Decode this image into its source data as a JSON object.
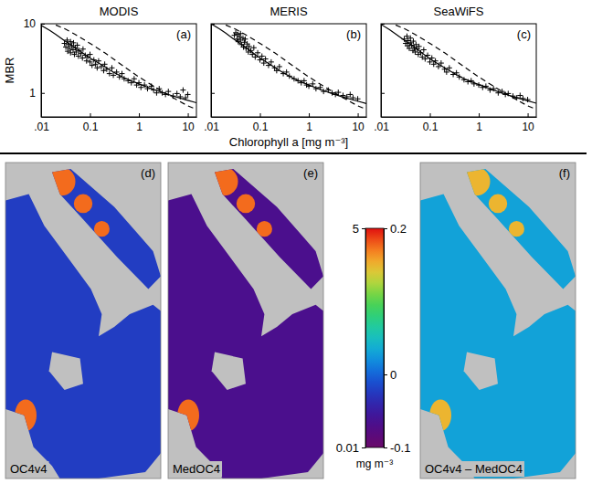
{
  "chart_data": [
    {
      "type": "scatter",
      "title": "MODIS",
      "letter": "(a)",
      "y_label": "MBR",
      "log": true,
      "xlim": [
        0.01,
        15
      ],
      "ylim": [
        0.45,
        10
      ],
      "xticks": [
        {
          "value": 0.01,
          "label": ".01"
        },
        0.1,
        1,
        10
      ],
      "yticks": [
        1,
        10
      ],
      "series": [
        {
          "type": "scatter",
          "marker": "plus",
          "color": "#000000",
          "x": [
            0.03,
            0.032,
            0.034,
            0.035,
            0.036,
            0.038,
            0.04,
            0.04,
            0.042,
            0.045,
            0.046,
            0.048,
            0.05,
            0.052,
            0.055,
            0.058,
            0.06,
            0.065,
            0.07,
            0.072,
            0.08,
            0.085,
            0.09,
            0.1,
            0.1,
            0.11,
            0.12,
            0.13,
            0.14,
            0.15,
            0.17,
            0.19,
            0.2,
            0.22,
            0.25,
            0.28,
            0.3,
            0.35,
            0.4,
            0.45,
            0.5,
            0.6,
            0.7,
            0.8,
            0.9,
            1.0,
            1.1,
            1.3,
            1.5,
            1.8,
            2.0,
            2.3,
            2.6,
            3.0,
            3.5,
            4.0,
            5.0,
            6.0,
            7.0,
            8.0,
            9.0,
            10
          ],
          "values": [
            5.2,
            4.6,
            5.8,
            4.0,
            5.0,
            4.4,
            5.5,
            3.8,
            4.8,
            4.2,
            5.3,
            3.6,
            4.5,
            3.9,
            4.9,
            3.4,
            4.1,
            3.7,
            3.2,
            4.3,
            3.5,
            2.9,
            3.3,
            2.8,
            3.6,
            2.5,
            3.0,
            2.6,
            2.3,
            2.9,
            2.4,
            2.1,
            2.6,
            2.2,
            1.9,
            2.3,
            1.8,
            2.0,
            1.7,
            1.9,
            1.6,
            1.5,
            1.4,
            1.6,
            1.3,
            1.4,
            1.2,
            1.3,
            1.15,
            1.25,
            1.1,
            1.0,
            1.15,
            1.0,
            0.95,
            1.05,
            0.9,
            0.98,
            0.88,
            1.1,
            0.85,
            0.95
          ]
        },
        {
          "type": "line",
          "line_style": "solid",
          "color": "#000000",
          "x": [
            0.01,
            0.015,
            0.02,
            0.03,
            0.05,
            0.1,
            0.2,
            0.3,
            0.5,
            1,
            2,
            3,
            5,
            10,
            15
          ],
          "values": [
            9.5,
            8.0,
            7.0,
            5.7,
            4.5,
            3.2,
            2.4,
            2.0,
            1.65,
            1.35,
            1.12,
            1.02,
            0.9,
            0.78,
            0.72
          ]
        },
        {
          "type": "line",
          "line_style": "dashed",
          "color": "#000000",
          "x": [
            0.02,
            0.03,
            0.05,
            0.1,
            0.2,
            0.3,
            0.5,
            1,
            2,
            3,
            5,
            10,
            15
          ],
          "values": [
            9.6,
            8.5,
            7.0,
            5.2,
            3.8,
            3.1,
            2.4,
            1.7,
            1.25,
            1.05,
            0.85,
            0.65,
            0.58
          ]
        }
      ]
    },
    {
      "type": "scatter",
      "title": "MERIS",
      "letter": "(b)",
      "x_label": "Chlorophyll a [mg m⁻³]",
      "log": true,
      "tick_labels": "x",
      "xlim": [
        0.01,
        15
      ],
      "ylim": [
        0.45,
        10
      ],
      "xticks": [
        {
          "value": 0.01,
          "label": ".01"
        },
        0.1,
        1,
        10
      ],
      "yticks": [
        1,
        10
      ],
      "series": [
        {
          "type": "scatter",
          "marker": "plus",
          "color": "#000000",
          "x": [
            0.03,
            0.032,
            0.034,
            0.035,
            0.036,
            0.038,
            0.04,
            0.04,
            0.042,
            0.045,
            0.046,
            0.048,
            0.05,
            0.052,
            0.055,
            0.058,
            0.06,
            0.065,
            0.07,
            0.075,
            0.08,
            0.09,
            0.1,
            0.11,
            0.12,
            0.13,
            0.15,
            0.17,
            0.2,
            0.22,
            0.25,
            0.3,
            0.35,
            0.4,
            0.5,
            0.6,
            0.7,
            0.8,
            0.9,
            1.0,
            1.2,
            1.4,
            1.7,
            2.0,
            2.5,
            3.0,
            3.5,
            4.0,
            5.0,
            6.0,
            7.0,
            8.0,
            10
          ],
          "values": [
            6.8,
            7.4,
            6.0,
            7.0,
            5.5,
            6.5,
            5.8,
            7.2,
            5.0,
            6.2,
            4.6,
            5.4,
            6.0,
            4.4,
            5.1,
            3.9,
            4.7,
            4.1,
            3.6,
            4.5,
            3.3,
            3.8,
            3.0,
            3.4,
            2.7,
            3.1,
            2.5,
            2.8,
            2.3,
            2.1,
            2.4,
            1.9,
            2.0,
            1.75,
            1.6,
            1.5,
            1.4,
            1.5,
            1.3,
            1.25,
            1.35,
            1.15,
            1.2,
            1.05,
            1.1,
            1.0,
            0.95,
            1.02,
            0.92,
            0.88,
            0.95,
            0.85,
            0.82
          ]
        },
        {
          "type": "line",
          "line_style": "solid",
          "color": "#000000",
          "x": [
            0.01,
            0.015,
            0.02,
            0.03,
            0.05,
            0.1,
            0.2,
            0.3,
            0.5,
            1,
            2,
            3,
            5,
            10,
            15
          ],
          "values": [
            10,
            8.4,
            7.3,
            5.9,
            4.6,
            3.2,
            2.35,
            1.95,
            1.6,
            1.3,
            1.08,
            0.98,
            0.87,
            0.76,
            0.7
          ]
        },
        {
          "type": "line",
          "line_style": "dashed",
          "color": "#000000",
          "x": [
            0.02,
            0.03,
            0.05,
            0.1,
            0.2,
            0.3,
            0.5,
            1,
            2,
            3,
            5,
            10,
            15
          ],
          "values": [
            9.6,
            8.5,
            7.0,
            5.2,
            3.8,
            3.1,
            2.4,
            1.7,
            1.25,
            1.05,
            0.85,
            0.65,
            0.58
          ]
        }
      ]
    },
    {
      "type": "scatter",
      "title": "SeaWiFS",
      "letter": "(c)",
      "log": true,
      "tick_labels": "x",
      "xlim": [
        0.01,
        15
      ],
      "ylim": [
        0.45,
        10
      ],
      "xticks": [
        {
          "value": 0.01,
          "label": ".01"
        },
        0.1,
        1,
        10
      ],
      "yticks": [
        1,
        10
      ],
      "series": [
        {
          "type": "scatter",
          "marker": "plus",
          "color": "#000000",
          "x": [
            0.03,
            0.032,
            0.034,
            0.035,
            0.036,
            0.038,
            0.04,
            0.04,
            0.042,
            0.045,
            0.046,
            0.048,
            0.05,
            0.052,
            0.055,
            0.058,
            0.06,
            0.065,
            0.07,
            0.075,
            0.08,
            0.09,
            0.1,
            0.11,
            0.12,
            0.13,
            0.15,
            0.17,
            0.2,
            0.22,
            0.25,
            0.3,
            0.35,
            0.4,
            0.5,
            0.6,
            0.7,
            0.8,
            1.0,
            1.2,
            1.4,
            1.7,
            2.0,
            2.5,
            3.0,
            3.5,
            4.0,
            5.0,
            6.0,
            7.0,
            8.0,
            10
          ],
          "values": [
            6.0,
            5.2,
            6.6,
            4.8,
            5.7,
            4.4,
            5.3,
            6.2,
            4.9,
            4.1,
            5.6,
            4.5,
            3.9,
            5.0,
            4.3,
            3.6,
            4.7,
            3.8,
            3.3,
            4.2,
            3.1,
            3.5,
            2.8,
            3.2,
            2.6,
            2.9,
            2.4,
            2.7,
            2.2,
            2.0,
            2.3,
            1.85,
            1.95,
            1.7,
            1.55,
            1.45,
            1.5,
            1.35,
            1.3,
            1.2,
            1.25,
            1.1,
            1.15,
            1.0,
            1.05,
            0.95,
            0.98,
            0.9,
            0.85,
            0.92,
            0.83,
            0.8
          ]
        },
        {
          "type": "line",
          "line_style": "solid",
          "color": "#000000",
          "x": [
            0.01,
            0.015,
            0.02,
            0.03,
            0.05,
            0.1,
            0.2,
            0.3,
            0.5,
            1,
            2,
            3,
            5,
            10,
            15
          ],
          "values": [
            9.8,
            8.2,
            7.1,
            5.8,
            4.5,
            3.1,
            2.3,
            1.95,
            1.6,
            1.32,
            1.1,
            1.0,
            0.88,
            0.77,
            0.71
          ]
        },
        {
          "type": "line",
          "line_style": "dashed",
          "color": "#000000",
          "x": [
            0.02,
            0.03,
            0.05,
            0.1,
            0.2,
            0.3,
            0.5,
            1,
            2,
            3,
            5,
            10,
            15
          ],
          "values": [
            9.6,
            8.5,
            7.0,
            5.2,
            3.8,
            3.1,
            2.4,
            1.7,
            1.25,
            1.05,
            0.85,
            0.65,
            0.58
          ]
        }
      ]
    },
    {
      "type": "map",
      "panels": [
        {
          "letter": "(d)",
          "caption": "OC4v4",
          "log": true,
          "sea_value": 0.05,
          "coast_value": 3
        },
        {
          "letter": "(e)",
          "caption": "MedOC4",
          "log": true,
          "sea_value": 0.02,
          "coast_value": 3
        },
        {
          "letter": "(f)",
          "caption": "OC4v4 – MedOC4",
          "log": false,
          "sea_value": 0.03,
          "coast_value": 0.15
        }
      ],
      "colorbar": {
        "chl_range": [
          0.01,
          5
        ],
        "chl_ticks": [
          5,
          0.01
        ],
        "diff_range": [
          -0.1,
          0.2
        ],
        "diff_ticks": [
          0.2,
          0,
          -0.1
        ],
        "unit": "mg m⁻³"
      }
    }
  ]
}
